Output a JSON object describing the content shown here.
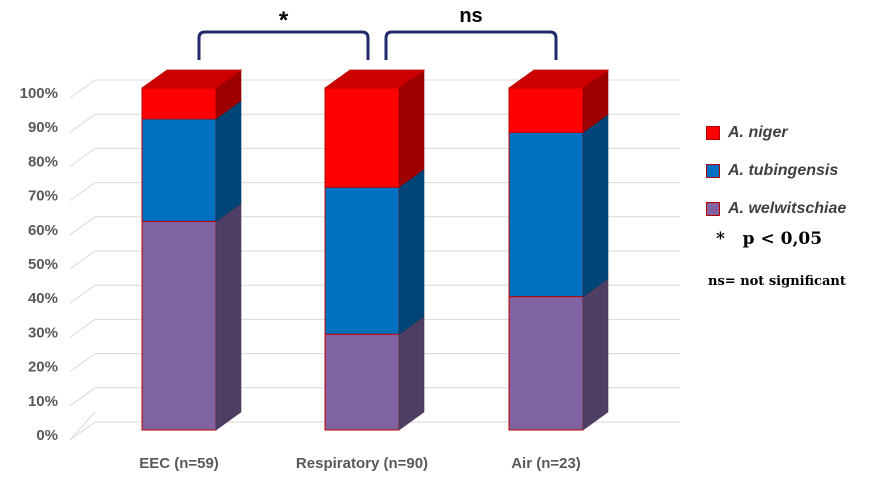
{
  "chart_data": {
    "type": "bar",
    "stacked": true,
    "style": "3d",
    "categories": [
      "EEC (n=59)",
      "Respiratory (n=90)",
      "Air (n=23)"
    ],
    "series": [
      {
        "name": "A. welwitschiae",
        "values": [
          61,
          28,
          39
        ],
        "color": "#8064A2"
      },
      {
        "name": "A. tubingensis",
        "values": [
          30,
          43,
          48
        ],
        "color": "#0070C0"
      },
      {
        "name": "A. niger",
        "values": [
          9,
          29,
          13
        ],
        "color": "#FF0000"
      }
    ],
    "y_ticks": [
      "0%",
      "10%",
      "20%",
      "30%",
      "40%",
      "50%",
      "60%",
      "70%",
      "80%",
      "90%",
      "100%"
    ],
    "ylim": [
      0,
      100
    ],
    "grid": true,
    "legend_position": "right",
    "significance": [
      {
        "from": "EEC (n=59)",
        "to": "Respiratory (n=90)",
        "label": "*"
      },
      {
        "from": "Respiratory (n=90)",
        "to": "Air (n=23)",
        "label": "ns"
      }
    ]
  },
  "legend": [
    {
      "label": "A. niger",
      "color": "#FF0000"
    },
    {
      "label": "A. tubingensis",
      "color": "#0070C0"
    },
    {
      "label": "A. welwitschiae",
      "color": "#8064A2"
    }
  ],
  "notes": {
    "significance": "*   p < 0,05",
    "ns": "ns= not significant"
  }
}
